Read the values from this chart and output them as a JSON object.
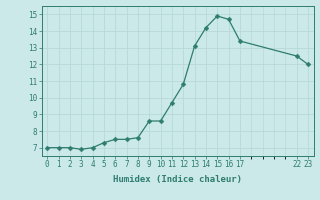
{
  "x": [
    0,
    1,
    2,
    3,
    4,
    5,
    6,
    7,
    8,
    9,
    10,
    11,
    12,
    13,
    14,
    15,
    16,
    17,
    22,
    23
  ],
  "y": [
    7.0,
    7.0,
    7.0,
    6.9,
    7.0,
    7.3,
    7.5,
    7.5,
    7.6,
    8.6,
    8.6,
    9.7,
    10.8,
    13.1,
    14.2,
    14.9,
    14.7,
    13.4,
    12.5,
    12.0
  ],
  "line_color": "#2e7d6e",
  "marker": "D",
  "marker_size": 2.5,
  "bg_color": "#cce9e9",
  "grid_color": "#b8d8d8",
  "xlabel": "Humidex (Indice chaleur)",
  "ylim": [
    6.5,
    15.5
  ],
  "xlim": [
    -0.5,
    23.5
  ],
  "xticks": [
    0,
    1,
    2,
    3,
    4,
    5,
    6,
    7,
    8,
    9,
    10,
    11,
    12,
    13,
    14,
    15,
    16,
    17,
    22,
    23
  ],
  "xtick_labels": [
    "0",
    "1",
    "2",
    "3",
    "4",
    "5",
    "6",
    "7",
    "8",
    "9",
    "10",
    "11",
    "12",
    "13",
    "14",
    "15",
    "16",
    "17",
    "22",
    "23"
  ],
  "yticks": [
    7,
    8,
    9,
    10,
    11,
    12,
    13,
    14,
    15
  ],
  "ytick_labels": [
    "7",
    "8",
    "9",
    "10",
    "11",
    "12",
    "13",
    "14",
    "15"
  ],
  "label_fontsize": 6.5,
  "tick_fontsize": 5.5
}
